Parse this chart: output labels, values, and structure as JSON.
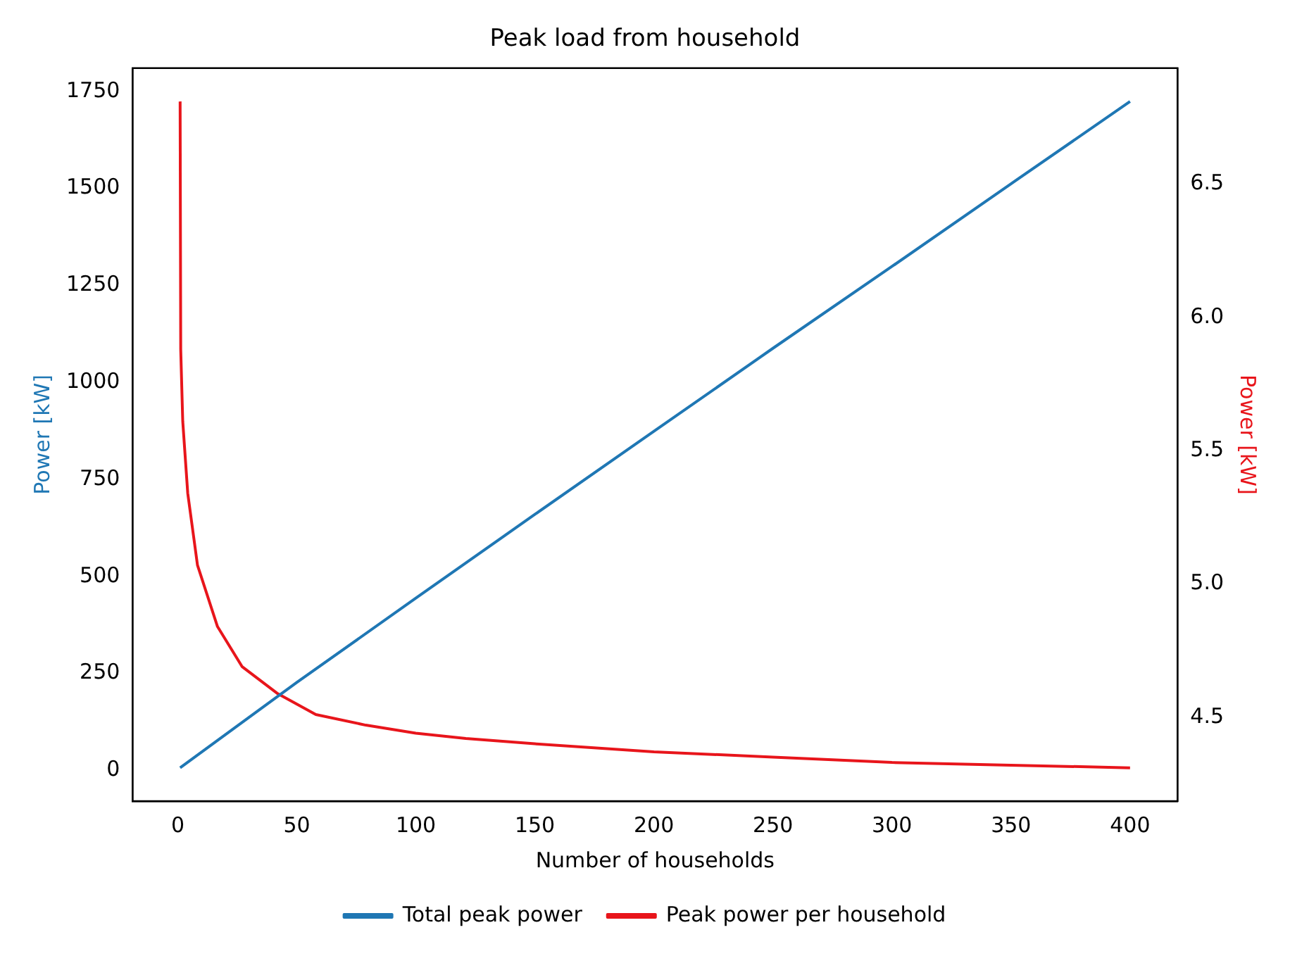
{
  "chart_data": {
    "type": "line",
    "title": "Peak load from household",
    "xlabel": "Number of households",
    "ylabel": "Power [kW]",
    "y2label": "Power [kW]",
    "series": [
      {
        "name": "Total peak power",
        "color": "#1f77b4",
        "x": [
          1,
          50,
          100,
          150,
          200,
          250,
          300,
          350,
          400
        ],
        "values": [
          7,
          227,
          444,
          660,
          874,
          1088,
          1299,
          1512,
          1724
        ]
      },
      {
        "name": "Peak power per household",
        "color": "#e8151b",
        "axis": "y2",
        "x": [
          1,
          1.25,
          2.1,
          4.2,
          8.3,
          16.7,
          27,
          41.7,
          58,
          79,
          100,
          121,
          150,
          200,
          250,
          300,
          350,
          400
        ],
        "values": [
          6.81,
          5.88,
          5.61,
          5.34,
          5.07,
          4.84,
          4.69,
          4.59,
          4.51,
          4.47,
          4.44,
          4.42,
          4.4,
          4.37,
          4.35,
          4.33,
          4.32,
          4.31
        ]
      }
    ],
    "xlim": [
      -18.95,
      419.95
    ],
    "xticks": [
      0,
      50,
      100,
      150,
      200,
      250,
      300,
      350,
      400
    ],
    "ylim": [
      -79,
      1810
    ],
    "yticks": [
      0,
      250,
      500,
      750,
      1000,
      1250,
      1500,
      1750
    ],
    "y2lim": [
      4.185,
      6.935
    ],
    "y2ticks": [
      4.5,
      {
        "value": 5,
        "label": "5.0"
      },
      5.5,
      {
        "value": 6,
        "label": "6.0"
      },
      6.5
    ],
    "grid": false,
    "legend": "bottom",
    "marker": "none",
    "line_style": "solid"
  }
}
